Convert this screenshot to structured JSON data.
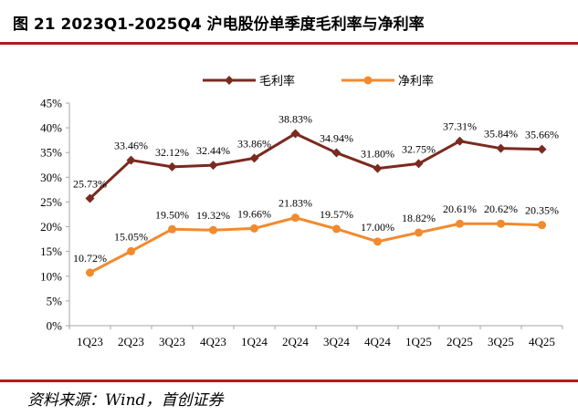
{
  "figure": {
    "title": "图 21 2023Q1-2025Q4 沪电股份单季度毛利率与净利率",
    "source": "资料来源：Wind，首创证券"
  },
  "colors": {
    "gross": "#7a2a20",
    "net": "#f28a2e",
    "rule": "#b31b1b",
    "axis": "#a6a6a6"
  },
  "chart_data": {
    "type": "line",
    "title": "2023Q1-2025Q4 沪电股份单季度毛利率与净利率",
    "xlabel": "",
    "ylabel": "",
    "categories": [
      "1Q23",
      "2Q23",
      "3Q23",
      "4Q23",
      "1Q24",
      "2Q24",
      "3Q24",
      "4Q24",
      "1Q25",
      "2Q25",
      "3Q25",
      "4Q25"
    ],
    "yticks": [
      "0%",
      "5%",
      "10%",
      "15%",
      "20%",
      "25%",
      "30%",
      "35%",
      "40%",
      "45%"
    ],
    "ylim": [
      0,
      45
    ],
    "grid": false,
    "legend_position": "top",
    "series": [
      {
        "name": "毛利率",
        "values": [
          25.73,
          33.46,
          32.12,
          32.44,
          33.86,
          38.83,
          34.94,
          31.8,
          32.75,
          37.31,
          35.84,
          35.66
        ],
        "labels": [
          "25.73%",
          "33.46%",
          "32.12%",
          "32.44%",
          "33.86%",
          "38.83%",
          "34.94%",
          "31.80%",
          "32.75%",
          "37.31%",
          "35.84%",
          "35.66%"
        ],
        "marker": "diamond"
      },
      {
        "name": "净利率",
        "values": [
          10.72,
          15.05,
          19.5,
          19.32,
          19.66,
          21.83,
          19.57,
          17.0,
          18.82,
          20.61,
          20.62,
          20.35
        ],
        "labels": [
          "10.72%",
          "15.05%",
          "19.50%",
          "19.32%",
          "19.66%",
          "21.83%",
          "19.57%",
          "17.00%",
          "18.82%",
          "20.61%",
          "20.62%",
          "20.35%"
        ],
        "marker": "circle"
      }
    ]
  }
}
